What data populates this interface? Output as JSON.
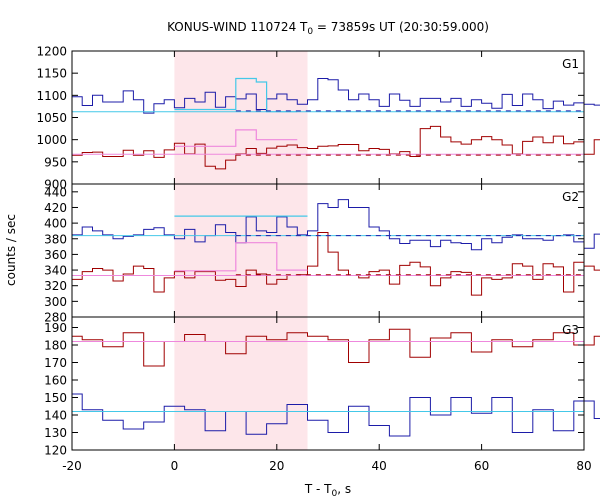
{
  "chart_data": {
    "type": "line",
    "title": "KONUS-WIND 110724 T",
    "title_sub": "0",
    "title_rest": " = 73859s UT (20:30:59.000)",
    "xlabel": "T - T",
    "xlabel_sub": "0",
    "xlabel_rest": ", s",
    "ylabel": "counts / sec",
    "xlim": [
      -20,
      80
    ],
    "x_ticks": [
      -20,
      0,
      20,
      40,
      60,
      80
    ],
    "shaded_interval": [
      0,
      26
    ],
    "bin_width": 2.0,
    "bins_start": -20,
    "colors": {
      "blue": "#1c1ca8",
      "red": "#a00000",
      "cyan": "#44c8e8",
      "pink": "#ee88dd",
      "shade": "#fde6ea"
    },
    "panels": [
      {
        "name": "G1",
        "ylim": [
          900,
          1200
        ],
        "y_ticks": [
          900,
          950,
          1000,
          1050,
          1100,
          1150,
          1200
        ],
        "series": [
          {
            "color": "blue",
            "values": [
              1097,
              1077,
              1100,
              1085,
              1085,
              1110,
              1090,
              1060,
              1081,
              1090,
              1072,
              1093,
              1085,
              1107,
              1073,
              1097,
              1092,
              1103,
              1068,
              1092,
              1103,
              1090,
              1080,
              1090,
              1138,
              1135,
              1112,
              1090,
              1103,
              1090,
              1075,
              1103,
              1089,
              1075,
              1093,
              1093,
              1085,
              1093,
              1075,
              1090,
              1082,
              1071,
              1102,
              1077,
              1103,
              1090,
              1070,
              1087,
              1078,
              1083,
              1080,
              1078,
              1065,
              1074,
              1062,
              1081,
              1094,
              1081,
              1079,
              1076,
              1072,
              1095,
              1077,
              1095,
              1080,
              1077,
              1070,
              1070,
              1065,
              1090,
              1075,
              1080,
              1060,
              1080,
              1078,
              1070,
              1066,
              1070,
              1083,
              1058,
              1060,
              1100,
              1077,
              1082,
              1070,
              1043,
              1075,
              1055,
              1060,
              1040,
              1080,
              1063,
              1094,
              1075,
              1100,
              1088,
              1072,
              1085,
              1087,
              1075
            ]
          },
          {
            "color": "red",
            "values": [
              965,
              971,
              972,
              962,
              962,
              976,
              965,
              975,
              960,
              977,
              992,
              968,
              990,
              940,
              934,
              954,
              968,
              980,
              969,
              981,
              985,
              988,
              982,
              980,
              985,
              986,
              989,
              989,
              975,
              980,
              978,
              968,
              973,
              962,
              1025,
              1030,
              1006,
              995,
              990,
              1000,
              1007,
              1000,
              988,
              968,
              996,
              1006,
              993,
              1008,
              991,
              995,
              967,
              1000,
              972,
              961,
              995,
              982,
              975,
              975,
              983,
              963,
              990,
              980,
              990,
              991,
              975,
              967,
              987,
              984,
              982,
              978,
              975,
              976,
              963,
              970,
              962,
              983,
              958,
              958,
              973,
              975,
              970,
              970,
              968,
              966,
              963,
              975,
              975,
              953,
              968,
              975,
              970,
              963,
              963,
              972,
              953,
              981,
              963,
              960,
              960,
              953
            ]
          }
        ],
        "background_fits": [
          {
            "color": "cyan",
            "level": 1063
          },
          {
            "color": "pink",
            "level": 967
          }
        ],
        "source_fits": [
          {
            "color": "cyan",
            "segments": [
              [
                0,
                12,
                1068
              ],
              [
                12,
                16,
                1138
              ],
              [
                16,
                18,
                1130
              ],
              [
                18,
                24,
                1063
              ]
            ]
          },
          {
            "color": "pink",
            "segments": [
              [
                0,
                12,
                985
              ],
              [
                12,
                16,
                1022
              ],
              [
                16,
                24,
                1000
              ]
            ]
          }
        ],
        "dashed_levels": [
          {
            "color": "blue",
            "level": 1065,
            "from": 12,
            "to": 80
          },
          {
            "color": "red",
            "level": 965,
            "from": 12,
            "to": 80
          }
        ]
      },
      {
        "name": "G2",
        "ylim": [
          280,
          450
        ],
        "y_ticks": [
          280,
          300,
          320,
          340,
          360,
          380,
          400,
          420,
          440
        ],
        "series": [
          {
            "color": "blue",
            "values": [
              385,
              395,
              390,
              385,
              380,
              383,
              385,
              392,
              394,
              385,
              380,
              392,
              376,
              384,
              398,
              388,
              375,
              408,
              390,
              388,
              408,
              395,
              385,
              390,
              425,
              420,
              430,
              420,
              420,
              395,
              390,
              380,
              374,
              378,
              378,
              370,
              378,
              375,
              374,
              366,
              380,
              375,
              382,
              385,
              380,
              380,
              378,
              384,
              385,
              376,
              368,
              386,
              386,
              387,
              376,
              384,
              386,
              372,
              382,
              387,
              383,
              390,
              383,
              370,
              385,
              382,
              385,
              388,
              385,
              380,
              380,
              388,
              385,
              376,
              387,
              375,
              372,
              387,
              390,
              377,
              390,
              380,
              379,
              371,
              380,
              380,
              388,
              377,
              384,
              387,
              375,
              380,
              384,
              376,
              380,
              377,
              386,
              384,
              378,
              378
            ]
          },
          {
            "color": "red",
            "values": [
              328,
              338,
              342,
              340,
              326,
              335,
              345,
              342,
              312,
              330,
              338,
              330,
              338,
              338,
              327,
              328,
              319,
              340,
              335,
              322,
              328,
              333,
              334,
              345,
              388,
              363,
              340,
              333,
              330,
              338,
              340,
              322,
              346,
              350,
              344,
              320,
              330,
              338,
              337,
              308,
              330,
              328,
              330,
              348,
              345,
              328,
              348,
              344,
              312,
              350,
              345,
              340,
              318,
              330,
              328,
              330,
              325,
              323,
              345,
              322,
              333,
              328,
              328,
              336,
              330,
              322,
              320,
              338,
              346,
              340,
              325,
              345,
              345,
              332,
              330,
              318,
              330,
              322,
              330,
              313,
              330,
              326,
              328,
              340,
              322,
              335,
              320,
              330,
              328,
              345,
              345,
              310,
              330,
              328,
              332,
              317,
              325,
              338,
              330,
              302
            ]
          }
        ],
        "background_fits": [
          {
            "color": "cyan",
            "level": 384
          },
          {
            "color": "pink",
            "level": 333
          }
        ],
        "source_fits": [
          {
            "color": "cyan",
            "segments": [
              [
                0,
                26,
                409
              ]
            ]
          },
          {
            "color": "pink",
            "segments": [
              [
                0,
                12,
                339
              ],
              [
                12,
                20,
                375
              ],
              [
                20,
                26,
                340
              ]
            ]
          }
        ],
        "dashed_levels": [
          {
            "color": "blue",
            "level": 384,
            "from": 12,
            "to": 80
          },
          {
            "color": "red",
            "level": 334,
            "from": 12,
            "to": 80
          }
        ]
      },
      {
        "name": "G3",
        "ylim": [
          120,
          196
        ],
        "y_ticks": [
          120,
          130,
          140,
          150,
          160,
          170,
          180,
          190
        ],
        "series": [
          {
            "color": "blue",
            "values": [
              152,
              143,
              143,
              137,
              137,
              132,
              132,
              136,
              136,
              145,
              145,
              143,
              143,
              131,
              131,
              142,
              142,
              129,
              129,
              135,
              135,
              146,
              146,
              137,
              137,
              130,
              130,
              145,
              145,
              134,
              134,
              128,
              128,
              150,
              150,
              140,
              140,
              150,
              150,
              141,
              141,
              150,
              150,
              130,
              130,
              143,
              143,
              131,
              131,
              148,
              148,
              138,
              138,
              149,
              149,
              139,
              139,
              139,
              139,
              138,
              138,
              130,
              130,
              145,
              145,
              150,
              150,
              135,
              135,
              142,
              142,
              150,
              150,
              135,
              135,
              140,
              140,
              143,
              143,
              132,
              132,
              131,
              131,
              140,
              140,
              147,
              147,
              144,
              144,
              136,
              136,
              147,
              147,
              128,
              128,
              149,
              149,
              144,
              144,
              144
            ]
          },
          {
            "color": "red",
            "values": [
              185,
              183,
              183,
              179,
              179,
              187,
              187,
              168,
              168,
              182,
              182,
              186,
              186,
              182,
              182,
              175,
              175,
              185,
              185,
              183,
              183,
              187,
              187,
              185,
              185,
              183,
              183,
              170,
              170,
              183,
              183,
              189,
              189,
              173,
              173,
              184,
              184,
              187,
              187,
              176,
              176,
              183,
              183,
              179,
              179,
              183,
              183,
              187,
              187,
              180,
              180,
              185,
              185,
              188,
              188,
              183,
              183,
              187,
              187,
              190,
              190,
              182,
              182,
              180,
              180,
              174,
              174,
              183,
              183,
              173,
              173,
              181,
              181,
              182,
              182,
              184,
              184,
              168,
              168,
              182,
              182,
              176,
              176,
              180,
              180,
              183,
              183,
              188,
              188,
              182,
              182,
              183,
              183,
              180,
              180,
              188,
              188,
              182,
              182,
              182
            ]
          }
        ],
        "background_fits": [
          {
            "color": "cyan",
            "level": 142
          },
          {
            "color": "pink",
            "level": 182
          }
        ],
        "source_fits": [],
        "dashed_levels": []
      }
    ]
  }
}
